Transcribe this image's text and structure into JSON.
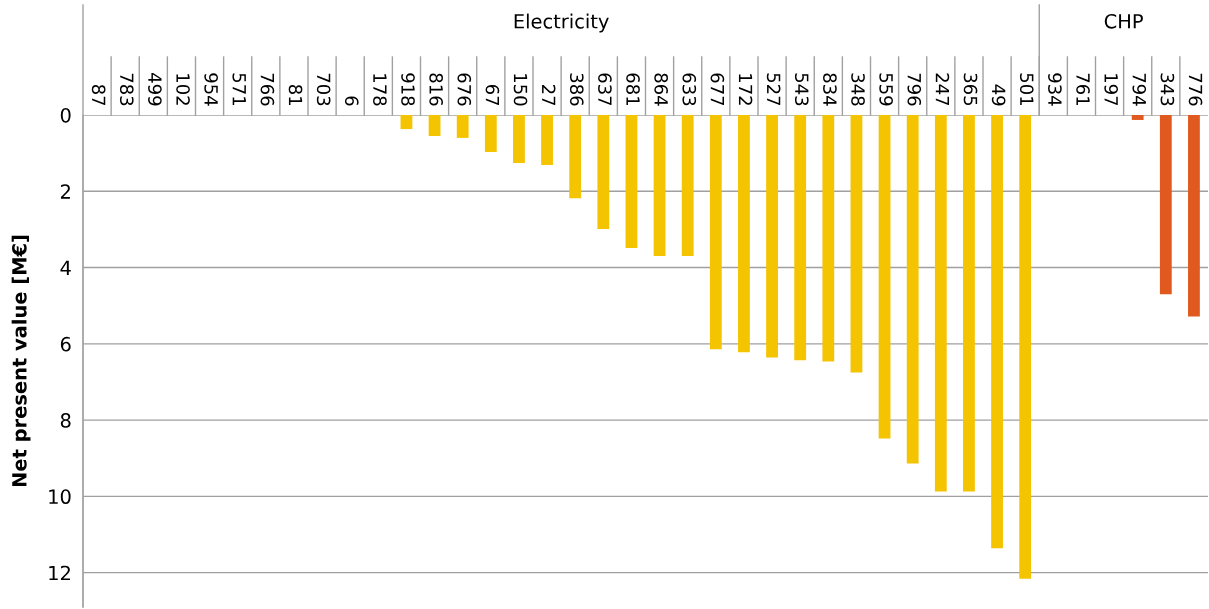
{
  "chart_data": {
    "type": "bar",
    "ylabel": "Net present value [M€]",
    "categories": [
      "87",
      "783",
      "499",
      "102",
      "954",
      "571",
      "766",
      "81",
      "703",
      "6",
      "178",
      "918",
      "816",
      "676",
      "67",
      "150",
      "27",
      "386",
      "637",
      "681",
      "864",
      "633",
      "677",
      "172",
      "527",
      "543",
      "834",
      "348",
      "559",
      "796",
      "247",
      "365",
      "49",
      "501",
      "934",
      "761",
      "197",
      "794",
      "343",
      "776"
    ],
    "values": [
      0,
      0,
      0,
      0,
      0,
      0,
      0,
      0,
      0,
      0,
      0,
      0.37,
      0.55,
      0.6,
      0.97,
      1.26,
      1.31,
      2.18,
      2.99,
      3.49,
      3.7,
      3.7,
      6.14,
      6.22,
      6.36,
      6.43,
      6.46,
      6.75,
      8.48,
      9.14,
      9.87,
      9.87,
      11.36,
      12.16,
      0,
      0,
      0,
      0.13,
      4.7,
      5.28
    ],
    "colors": [
      "#f5c400",
      "#f5c400",
      "#f5c400",
      "#f5c400",
      "#f5c400",
      "#f5c400",
      "#f5c400",
      "#f5c400",
      "#f5c400",
      "#f5c400",
      "#f5c400",
      "#f5c400",
      "#f5c400",
      "#f5c400",
      "#f5c400",
      "#f5c400",
      "#f5c400",
      "#f5c400",
      "#f5c400",
      "#f5c400",
      "#f5c400",
      "#f5c400",
      "#f5c400",
      "#f5c400",
      "#f5c400",
      "#f5c400",
      "#f5c400",
      "#f5c400",
      "#f5c400",
      "#f5c400",
      "#f5c400",
      "#f5c400",
      "#f5c400",
      "#f5c400",
      "#e05a20",
      "#e05a20",
      "#e05a20",
      "#e05a20",
      "#e05a20",
      "#e05a20"
    ],
    "annotations": [
      "Electricity",
      "CHP"
    ],
    "ylim": [
      12.9,
      0
    ],
    "yticks": [
      0,
      2,
      4,
      6,
      8,
      10,
      12
    ],
    "grid": "y"
  }
}
